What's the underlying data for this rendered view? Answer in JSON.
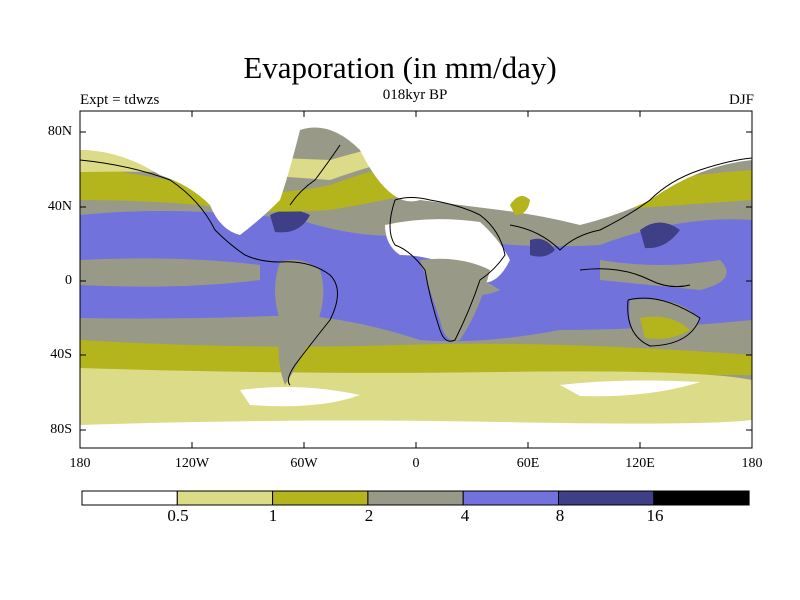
{
  "header": {
    "title": "Evaporation (in mm/day)",
    "left_label": "Expt = tdwzs",
    "center_label": "018kyr BP",
    "right_label": "DJF"
  },
  "map": {
    "y_ticks": [
      "80N",
      "40N",
      "0",
      "40S",
      "80S"
    ],
    "x_ticks": [
      "180",
      "120W",
      "60W",
      "0",
      "60E",
      "120E",
      "180"
    ]
  },
  "colorbar": {
    "colors": [
      "#ffffff",
      "#dcdc88",
      "#b4b41c",
      "#999988",
      "#7272dc",
      "#3f3f88",
      "#000000"
    ],
    "labels": [
      "0.5",
      "1",
      "2",
      "4",
      "8",
      "16"
    ]
  }
}
